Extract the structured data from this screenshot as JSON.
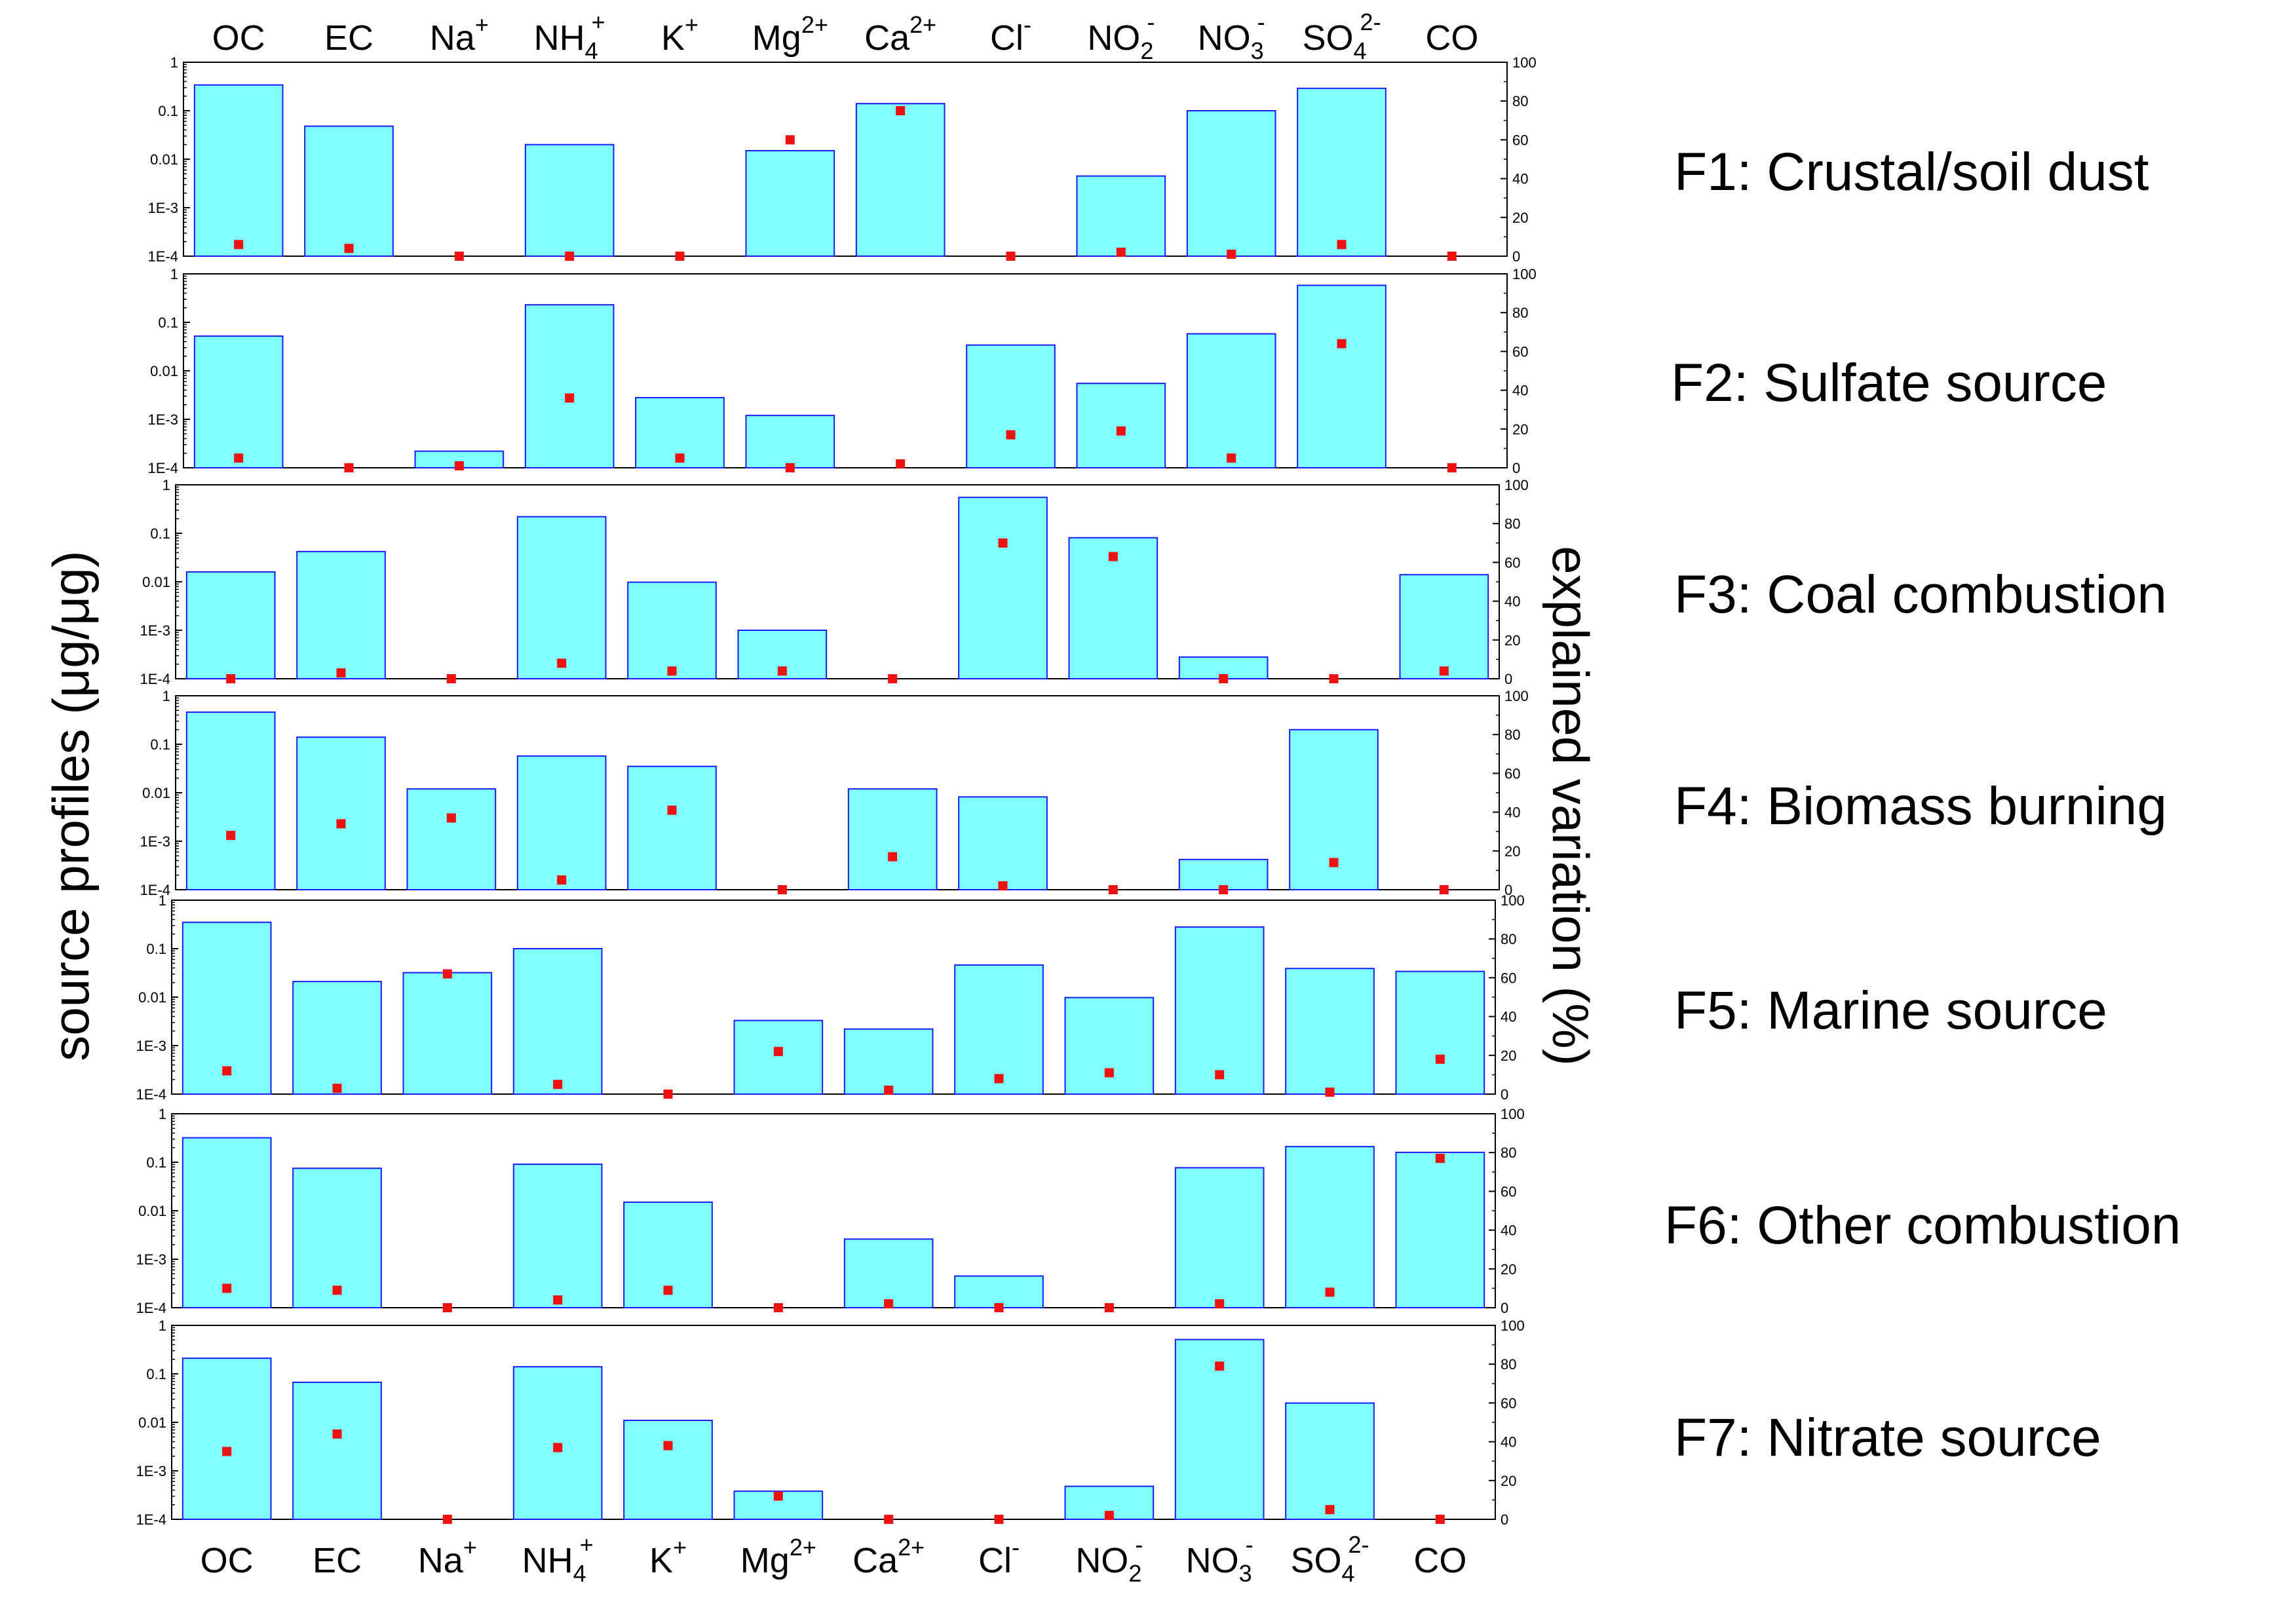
{
  "chart_data": {
    "type": "bar",
    "description_mode": "stacked-panels",
    "categories": [
      {
        "base": "OC",
        "sup": "",
        "sub": ""
      },
      {
        "base": "EC",
        "sup": "",
        "sub": ""
      },
      {
        "base": "Na",
        "sup": "+",
        "sub": ""
      },
      {
        "base": "NH",
        "sup": "+",
        "sub": "4"
      },
      {
        "base": "K",
        "sup": "+",
        "sub": ""
      },
      {
        "base": "Mg",
        "sup": "2+",
        "sub": ""
      },
      {
        "base": "Ca",
        "sup": "2+",
        "sub": ""
      },
      {
        "base": "Cl",
        "sup": "-",
        "sub": ""
      },
      {
        "base": "NO",
        "sup": "-",
        "sub": "2"
      },
      {
        "base": "NO",
        "sup": "-",
        "sub": "3"
      },
      {
        "base": "SO",
        "sup": "2-",
        "sub": "4"
      },
      {
        "base": "CO",
        "sup": "",
        "sub": ""
      }
    ],
    "ylabel_left": "source profiles (μg/μg)",
    "ylabel_right": "explained variation (%)",
    "left_axis": {
      "scale": "log",
      "range": [
        0.0001,
        1
      ],
      "ticks": [
        "1E-4",
        "1E-3",
        "0.01",
        "0.1",
        "1"
      ]
    },
    "right_axis": {
      "scale": "linear",
      "range": [
        0,
        100
      ],
      "ticks": [
        "0",
        "20",
        "40",
        "60",
        "80",
        "100"
      ]
    },
    "bar_color": "#80ffff",
    "bar_edge_color": "#1a1aff",
    "marker_color": "#ee1111",
    "panels": [
      {
        "label": "F1: Crustal/soil dust",
        "profile": [
          0.34,
          0.048,
          null,
          0.02,
          null,
          0.015,
          0.14,
          null,
          0.0045,
          0.1,
          0.29,
          null
        ],
        "explained_variation": [
          6,
          4,
          0,
          0,
          0,
          60,
          75,
          0,
          2,
          1,
          6,
          0
        ]
      },
      {
        "label": "F2: Sulfate source",
        "profile": [
          0.052,
          null,
          0.00022,
          0.23,
          0.0028,
          0.0012,
          null,
          0.034,
          0.0055,
          0.058,
          0.58,
          null
        ],
        "explained_variation": [
          5,
          0,
          1,
          36,
          5,
          0,
          2,
          17,
          19,
          5,
          64,
          0
        ]
      },
      {
        "label": "F3: Coal combustion",
        "profile": [
          0.016,
          0.042,
          null,
          0.22,
          0.0098,
          0.001,
          null,
          0.55,
          0.081,
          0.00028,
          null,
          0.014
        ],
        "explained_variation": [
          0,
          3,
          0,
          8,
          4,
          4,
          0,
          70,
          63,
          0,
          0,
          4
        ]
      },
      {
        "label": "F4: Biomass burning",
        "profile": [
          0.46,
          0.14,
          0.012,
          0.057,
          0.035,
          null,
          0.012,
          0.0082,
          null,
          0.00042,
          0.2,
          null
        ],
        "explained_variation": [
          28,
          34,
          37,
          5,
          41,
          0,
          17,
          2,
          0,
          0,
          14,
          0
        ]
      },
      {
        "label": "F5: Marine source",
        "profile": [
          0.35,
          0.021,
          0.032,
          0.1,
          null,
          0.0033,
          0.0022,
          0.046,
          0.0098,
          0.28,
          0.039,
          0.034
        ],
        "explained_variation": [
          12,
          3,
          62,
          5,
          0,
          22,
          2,
          8,
          11,
          10,
          1,
          18
        ]
      },
      {
        "label": "F6: Other combustion",
        "profile": [
          0.32,
          0.075,
          null,
          0.091,
          0.015,
          null,
          0.0026,
          0.00045,
          null,
          0.077,
          0.21,
          0.16
        ],
        "explained_variation": [
          10,
          9,
          0,
          4,
          9,
          0,
          2,
          0,
          0,
          2,
          8,
          77
        ]
      },
      {
        "label": "F7: Nitrate source",
        "profile": [
          0.21,
          0.067,
          null,
          0.14,
          0.011,
          0.00038,
          null,
          null,
          0.00048,
          0.51,
          0.025,
          null
        ],
        "explained_variation": [
          35,
          44,
          0,
          37,
          38,
          12,
          0,
          0,
          2,
          79,
          5,
          0
        ]
      }
    ]
  }
}
